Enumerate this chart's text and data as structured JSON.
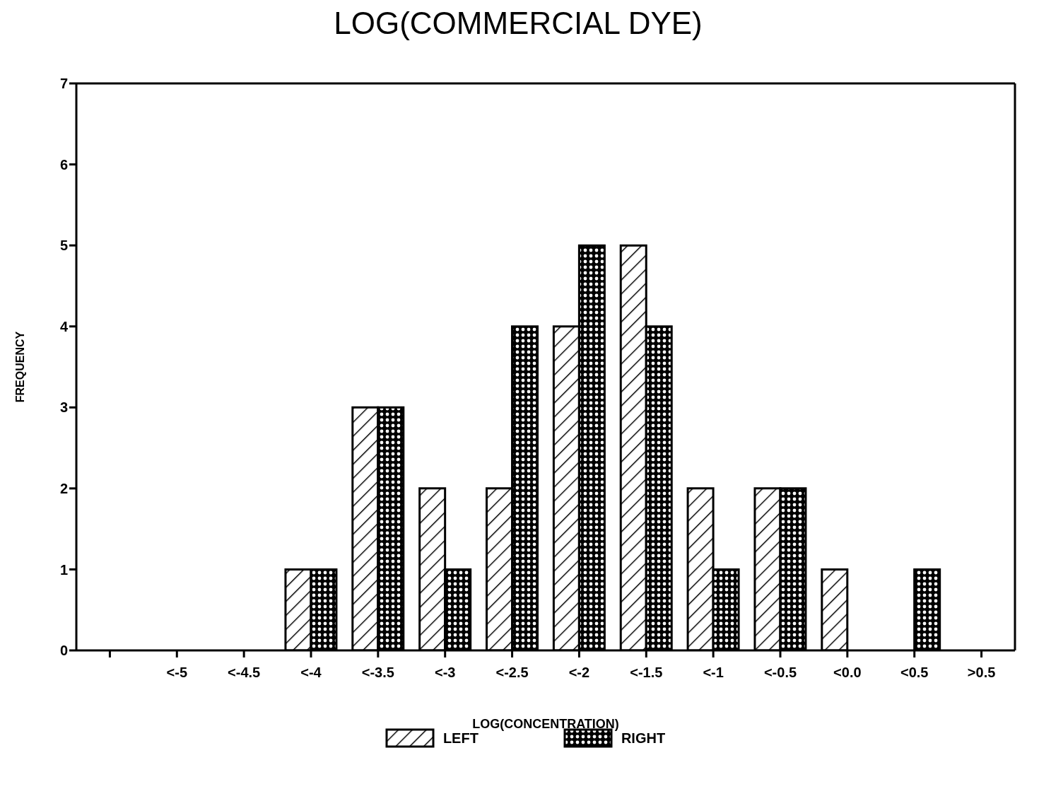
{
  "chart_data": {
    "type": "bar",
    "title": "LOG(COMMERCIAL DYE)",
    "xlabel": "LOG(CONCENTRATION)",
    "ylabel": "FREQUENCY",
    "categories": [
      null,
      "<-5",
      "<-4.5",
      "<-4",
      "<-3.5",
      "<-3",
      "<-2.5",
      "<-2",
      "<-1.5",
      "<-1",
      "<-0.5",
      "<0.0",
      "<0.5",
      ">0.5"
    ],
    "series": [
      {
        "name": "LEFT",
        "color": "#000000",
        "values": [
          0,
          0,
          0,
          1,
          3,
          2,
          2,
          4,
          5,
          2,
          2,
          1,
          0,
          0
        ]
      },
      {
        "name": "RIGHT",
        "color": "#000000",
        "values": [
          0,
          0,
          0,
          1,
          3,
          1,
          4,
          5,
          4,
          1,
          2,
          0,
          1,
          0
        ]
      }
    ],
    "ylim": [
      0,
      7
    ],
    "yticks": [
      0,
      1,
      2,
      3,
      4,
      5,
      6,
      7
    ],
    "legend": "bottom"
  }
}
